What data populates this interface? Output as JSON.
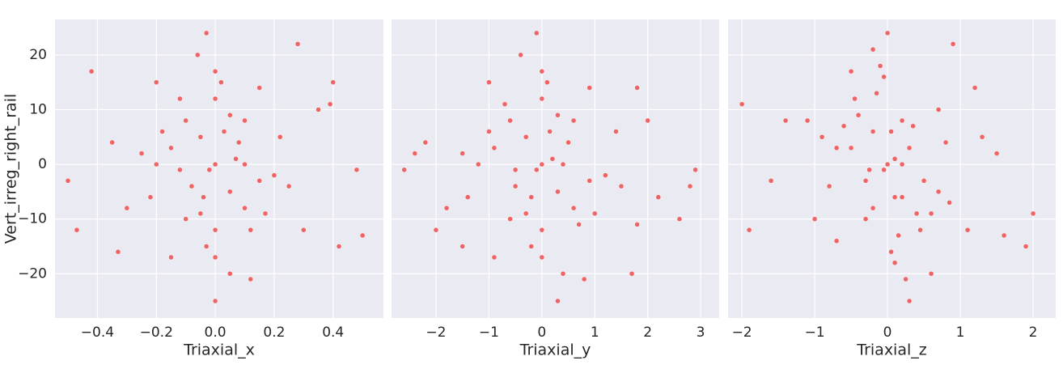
{
  "chart_data": [
    {
      "type": "scatter",
      "x_label": "Triaxial_x",
      "y_label": "Vert_irreg_right_rail",
      "color": "#ee4b4b",
      "xlim": [
        -0.544,
        0.571
      ],
      "ylim": [
        -28.1,
        26.5
      ],
      "xticks": [
        {
          "value": -0.4,
          "label": "−0.4"
        },
        {
          "value": -0.2,
          "label": "−0.2"
        },
        {
          "value": 0,
          "label": "0.0"
        },
        0.2,
        0.4
      ],
      "yticks": [
        {
          "value": -20,
          "label": "−20"
        },
        {
          "value": -10,
          "label": "−10"
        },
        0,
        10,
        20
      ],
      "x": [
        0,
        -0.05,
        0.05,
        -0.1,
        0.1,
        -0.15,
        0.15,
        -0.08,
        0.08,
        0,
        0,
        -0.12,
        0.12,
        -0.2,
        0.2,
        0.02,
        -0.03,
        -0.18,
        0.17,
        0.05,
        -0.05,
        -0.1,
        0.1,
        0,
        0,
        -0.06,
        0.05,
        -0.25,
        0.25,
        0.22,
        -0.22,
        -0.3,
        0.3,
        -0.35,
        0.35,
        0.4,
        -0.42,
        -0.47,
        0.5,
        0.48,
        -0.5,
        0.28,
        -0.03,
        0,
        0.12,
        -0.15,
        0.15,
        -0.2,
        0.39,
        -0.33,
        0.42,
        0.07,
        -0.02,
        0.1,
        -0.12,
        0.03,
        -0.04
      ],
      "y": [
        0,
        5,
        -5,
        8,
        -8,
        3,
        -3,
        -4,
        4,
        12,
        -12,
        12,
        -12,
        0,
        -2,
        15,
        -15,
        6,
        -9,
        9,
        -9,
        -10,
        8,
        17,
        -17,
        20,
        -20,
        2,
        -4,
        5,
        -6,
        -8,
        -12,
        4,
        10,
        15,
        17,
        -12,
        -13,
        -1,
        -3,
        22,
        24,
        -25,
        -21,
        -17,
        14,
        15,
        11,
        -16,
        -15,
        1,
        -1,
        0,
        -1,
        6,
        -6
      ]
    },
    {
      "type": "scatter",
      "x_label": "Triaxial_y",
      "color": "#ee4b4b",
      "xlim": [
        -2.84,
        3.35
      ],
      "ylim": [
        -28.1,
        26.5
      ],
      "xticks": [
        {
          "value": -2,
          "label": "−2"
        },
        {
          "value": -1,
          "label": "−1"
        },
        0,
        1,
        2,
        3
      ],
      "yticks": [
        -20,
        -10,
        0,
        10,
        20
      ],
      "x": [
        0,
        -0.3,
        0.3,
        -0.6,
        0.6,
        -0.9,
        0.9,
        -0.5,
        0.5,
        0,
        0,
        -0.7,
        0.7,
        -1.2,
        1.2,
        0.1,
        -0.2,
        -1.0,
        1.0,
        0.3,
        -0.3,
        -0.6,
        0.6,
        0,
        0,
        -0.4,
        0.4,
        -1.5,
        1.5,
        1.4,
        -1.4,
        -1.8,
        1.8,
        -2.2,
        2.0,
        1.8,
        -2.4,
        -2.0,
        2.6,
        2.9,
        -2.6,
        1.7,
        -0.1,
        0.3,
        0.8,
        -0.9,
        0.9,
        -1.0,
        2.2,
        -1.5,
        2.8,
        0.2,
        -0.1,
        0.4,
        -0.5,
        0.15,
        -0.2
      ],
      "y": [
        0,
        5,
        -5,
        8,
        -8,
        3,
        -3,
        -4,
        4,
        12,
        -12,
        11,
        -11,
        0,
        -2,
        15,
        -15,
        6,
        -9,
        9,
        -9,
        -10,
        8,
        17,
        -17,
        20,
        -20,
        2,
        -4,
        6,
        -6,
        -8,
        -11,
        4,
        8,
        14,
        2,
        -12,
        -10,
        -1,
        -1,
        -20,
        24,
        -25,
        -21,
        -17,
        14,
        15,
        -6,
        -15,
        -4,
        1,
        -1,
        0,
        -1,
        6,
        -6
      ]
    },
    {
      "type": "scatter",
      "x_label": "Triaxial_z",
      "color": "#ee4b4b",
      "xlim": [
        -2.19,
        2.31
      ],
      "ylim": [
        -28.1,
        26.5
      ],
      "xticks": [
        {
          "value": -2,
          "label": "−2"
        },
        {
          "value": -1,
          "label": "−1"
        },
        0,
        1,
        2
      ],
      "yticks": [
        -20,
        -10,
        0,
        10,
        20
      ],
      "x": [
        0,
        -0.2,
        0.2,
        -0.4,
        0.4,
        -0.5,
        0.5,
        -0.3,
        0.3,
        -0.15,
        0.15,
        -0.45,
        0.45,
        -0.7,
        0.7,
        -0.05,
        0.05,
        -0.6,
        0.6,
        0.2,
        -0.2,
        -0.3,
        0.35,
        -0.1,
        0.1,
        -0.2,
        0.25,
        -0.9,
        0.85,
        0.8,
        -0.8,
        -1.1,
        1.1,
        -1.4,
        1.2,
        1.3,
        -1.6,
        -1.9,
        1.6,
        2.0,
        -2.0,
        0.9,
        0,
        0.3,
        0.6,
        -0.7,
        0.7,
        -0.5,
        1.5,
        -1.0,
        1.9,
        0.1,
        -0.05,
        0.2,
        -0.25,
        0.05,
        0.1
      ],
      "y": [
        0,
        6,
        -6,
        9,
        -9,
        3,
        -3,
        -3,
        3,
        13,
        -13,
        12,
        -12,
        3,
        -5,
        16,
        -16,
        7,
        -9,
        8,
        -8,
        -10,
        7,
        18,
        -18,
        21,
        -21,
        5,
        -7,
        4,
        -4,
        8,
        -12,
        8,
        14,
        5,
        -3,
        -12,
        -13,
        -9,
        11,
        22,
        24,
        -25,
        -20,
        -14,
        10,
        17,
        2,
        -10,
        -15,
        1,
        -1,
        0,
        -1,
        6,
        -6
      ]
    }
  ]
}
